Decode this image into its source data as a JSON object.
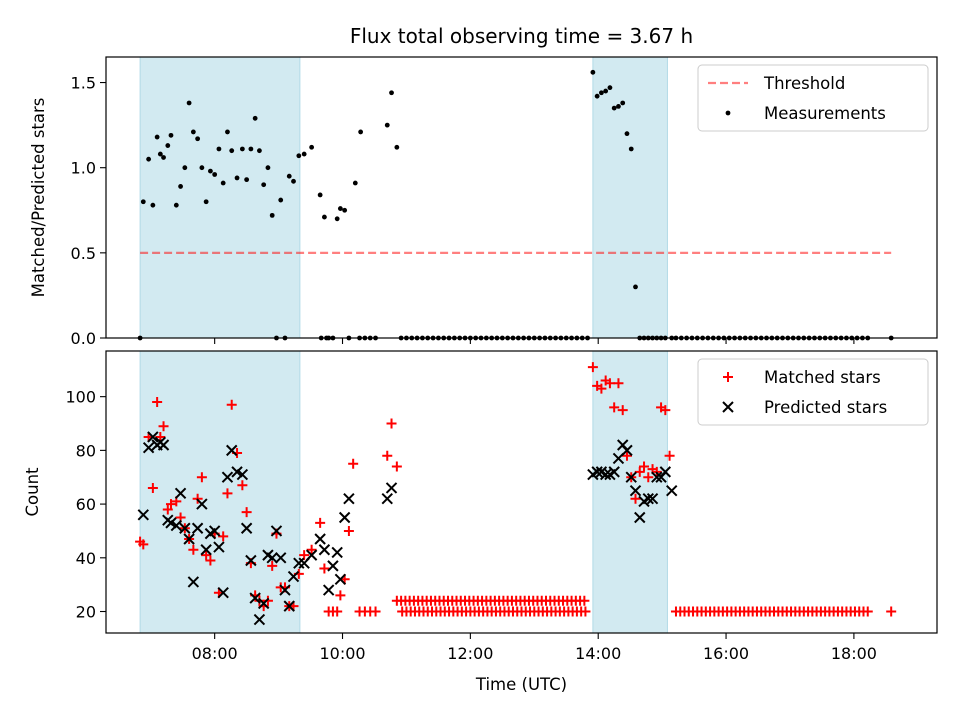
{
  "chart_data": [
    {
      "type": "scatter",
      "title": "Flux total observing time = 3.67 h",
      "xlabel": "",
      "ylabel": "Matched/Predicted stars",
      "xlim_hours": [
        6.3,
        19.3
      ],
      "ylim": [
        0,
        1.65
      ],
      "yticks": [
        0.0,
        0.5,
        1.0,
        1.5
      ],
      "ytick_labels": [
        "0.0",
        "0.5",
        "1.0",
        "1.5"
      ],
      "xtick_labels_visible": false,
      "shaded_intervals": [
        {
          "start": "06:50",
          "end": "09:20"
        },
        {
          "start": "13:55",
          "end": "15:05"
        }
      ],
      "shade_color": "#add8e6",
      "legend_position": "top-right",
      "legend": [
        "Threshold",
        "Measurements"
      ],
      "threshold": {
        "name": "Threshold",
        "value": 0.5,
        "x_start": "06:50",
        "x_end": "18:35",
        "color": "#ff0000",
        "style": "dashed",
        "alpha": 0.5
      },
      "series": [
        {
          "name": "Measurements",
          "color": "#000000",
          "marker": "dot",
          "x": [
            "06:50",
            "06:53",
            "06:58",
            "07:02",
            "07:06",
            "07:09",
            "07:12",
            "07:16",
            "07:19",
            "07:24",
            "07:28",
            "07:32",
            "07:36",
            "07:40",
            "07:44",
            "07:48",
            "07:52",
            "07:56",
            "08:00",
            "08:04",
            "08:08",
            "08:12",
            "08:16",
            "08:21",
            "08:26",
            "08:30",
            "08:34",
            "08:38",
            "08:42",
            "08:46",
            "08:50",
            "08:54",
            "08:58",
            "09:02",
            "09:06",
            "09:10",
            "09:14",
            "09:19",
            "09:24",
            "09:31",
            "09:39",
            "09:43",
            "09:47",
            "09:51",
            "09:55",
            "09:58",
            "10:02",
            "10:06",
            "10:12",
            "10:17",
            "10:42",
            "10:46",
            "10:51",
            "13:55",
            "13:59",
            "14:03",
            "14:07",
            "14:11",
            "14:15",
            "14:19",
            "14:23",
            "14:27",
            "14:31",
            "14:35",
            "14:39",
            "14:43",
            "14:47",
            "14:51",
            "14:55",
            "14:59",
            "15:03",
            "15:09"
          ],
          "y": [
            0.0,
            0.8,
            1.05,
            0.78,
            1.18,
            1.08,
            1.06,
            1.13,
            1.19,
            0.78,
            0.89,
            1.0,
            1.38,
            1.21,
            1.17,
            1.0,
            0.8,
            0.98,
            0.96,
            1.11,
            0.91,
            1.21,
            1.1,
            0.94,
            1.11,
            0.93,
            1.11,
            1.29,
            1.1,
            0.9,
            1.0,
            0.72,
            0.0,
            0.81,
            0.0,
            0.95,
            0.92,
            1.07,
            1.08,
            1.12,
            0.84,
            0.71,
            0.0,
            0.0,
            0.7,
            0.76,
            0.75,
            0.0,
            0.91,
            1.21,
            1.25,
            1.44,
            1.12,
            1.56,
            1.42,
            1.44,
            1.45,
            1.47,
            1.35,
            1.36,
            1.38,
            1.2,
            1.11,
            0.3,
            0.0,
            0.0,
            0.0,
            0.0,
            0.0,
            0.0,
            0.0,
            0.0
          ]
        },
        {
          "name": "Zero-ratio measurements",
          "color": "#000000",
          "marker": "dot",
          "y_constant": 0.0,
          "ranges": [
            {
              "start": "09:40",
              "end": "09:49",
              "step_min": 5
            },
            {
              "start": "10:16",
              "end": "10:32",
              "step_min": 5
            },
            {
              "start": "10:55",
              "end": "13:50",
              "step_min": 5
            },
            {
              "start": "15:13",
              "end": "18:16",
              "step_min": 5
            }
          ],
          "x": [
            "18:35"
          ],
          "y": [
            0.0
          ]
        }
      ]
    },
    {
      "type": "scatter",
      "title": "",
      "xlabel": "Time (UTC)",
      "ylabel": "Count",
      "xlim_hours": [
        6.3,
        19.3
      ],
      "ylim": [
        12,
        117
      ],
      "yticks": [
        20,
        40,
        60,
        80,
        100
      ],
      "ytick_labels": [
        "20",
        "40",
        "60",
        "80",
        "100"
      ],
      "xticks_hours": [
        8,
        10,
        12,
        14,
        16,
        18
      ],
      "xtick_labels": [
        "08:00",
        "10:00",
        "12:00",
        "14:00",
        "16:00",
        "18:00"
      ],
      "shaded_intervals": [
        {
          "start": "06:50",
          "end": "09:20"
        },
        {
          "start": "13:55",
          "end": "15:05"
        }
      ],
      "shade_color": "#add8e6",
      "legend_position": "top-right",
      "legend": [
        "Matched stars",
        "Predicted stars"
      ],
      "series": [
        {
          "name": "Matched stars",
          "color": "#ff0000",
          "marker": "plus",
          "x": [
            "06:50",
            "06:53",
            "06:58",
            "07:02",
            "07:06",
            "07:09",
            "07:12",
            "07:16",
            "07:19",
            "07:24",
            "07:28",
            "07:32",
            "07:36",
            "07:40",
            "07:44",
            "07:48",
            "07:52",
            "07:56",
            "08:00",
            "08:04",
            "08:08",
            "08:12",
            "08:16",
            "08:21",
            "08:26",
            "08:30",
            "08:34",
            "08:38",
            "08:42",
            "08:46",
            "08:50",
            "08:54",
            "08:58",
            "09:02",
            "09:06",
            "09:10",
            "09:14",
            "09:19",
            "09:24",
            "09:31",
            "09:39",
            "09:43",
            "09:47",
            "09:51",
            "09:55",
            "09:58",
            "10:02",
            "10:06",
            "10:10",
            "10:42",
            "10:46",
            "10:51",
            "13:55",
            "13:59",
            "14:03",
            "14:07",
            "14:11",
            "14:15",
            "14:19",
            "14:23",
            "14:27",
            "14:31",
            "14:35",
            "14:39",
            "14:43",
            "14:47",
            "14:51",
            "14:55",
            "14:59",
            "15:03",
            "15:07"
          ],
          "y": [
            46,
            45,
            85,
            66,
            98,
            85,
            89,
            58,
            60,
            61,
            55,
            51,
            47,
            43,
            62,
            70,
            41,
            39,
            49,
            27,
            48,
            64,
            97,
            79,
            67,
            57,
            38,
            26,
            24,
            22,
            24,
            37,
            49,
            29,
            29,
            22,
            22,
            34,
            41,
            43,
            53,
            36,
            20,
            20,
            20,
            26,
            32,
            50,
            75,
            78,
            90,
            74,
            111,
            104,
            103,
            106,
            105,
            96,
            105,
            95,
            78,
            70,
            62,
            72,
            74,
            70,
            73,
            72,
            96,
            95,
            78
          ]
        },
        {
          "name": "Predicted stars",
          "color": "#000000",
          "marker": "x",
          "x": [
            "06:53",
            "06:58",
            "07:02",
            "07:06",
            "07:09",
            "07:12",
            "07:16",
            "07:19",
            "07:24",
            "07:28",
            "07:32",
            "07:36",
            "07:40",
            "07:44",
            "07:48",
            "07:52",
            "07:56",
            "08:00",
            "08:04",
            "08:08",
            "08:12",
            "08:16",
            "08:21",
            "08:26",
            "08:30",
            "08:34",
            "08:38",
            "08:42",
            "08:46",
            "08:50",
            "08:54",
            "08:58",
            "09:02",
            "09:06",
            "09:10",
            "09:14",
            "09:19",
            "09:24",
            "09:31",
            "09:39",
            "09:43",
            "09:47",
            "09:51",
            "09:55",
            "09:58",
            "10:02",
            "10:06",
            "10:42",
            "10:46",
            "13:55",
            "13:59",
            "14:03",
            "14:07",
            "14:11",
            "14:15",
            "14:19",
            "14:23",
            "14:27",
            "14:31",
            "14:35",
            "14:39",
            "14:43",
            "14:47",
            "14:51",
            "14:55",
            "14:59",
            "15:03",
            "15:09"
          ],
          "y": [
            56,
            81,
            85,
            82,
            83,
            82,
            54,
            53,
            52,
            64,
            51,
            47,
            31,
            51,
            60,
            43,
            49,
            50,
            44,
            27,
            70,
            80,
            72,
            71,
            51,
            39,
            25,
            17,
            23,
            41,
            40,
            50,
            40,
            28,
            22,
            33,
            38,
            38,
            41,
            47,
            43,
            28,
            37,
            42,
            32,
            55,
            62,
            62,
            66,
            71,
            72,
            72,
            71,
            71,
            72,
            77,
            82,
            80,
            70,
            65,
            55,
            61,
            62,
            62,
            70,
            70,
            72,
            65
          ]
        },
        {
          "name": "Matched stars baseline",
          "color": "#ff0000",
          "marker": "plus",
          "y_constant": 20,
          "ranges": [
            {
              "start": "10:16",
              "end": "10:35",
              "step_min": 5
            },
            {
              "start": "10:56",
              "end": "13:50",
              "step_min": 4
            },
            {
              "start": "15:13",
              "end": "18:16",
              "step_min": 4
            }
          ],
          "x": [
            "18:35"
          ],
          "y": [
            20
          ]
        },
        {
          "name": "Matched stars mid baseline",
          "color": "#ff0000",
          "marker": "plus",
          "y_constant": 24,
          "ranges": [
            {
              "start": "10:51",
              "end": "13:50",
              "step_min": 4
            }
          ]
        }
      ]
    }
  ]
}
